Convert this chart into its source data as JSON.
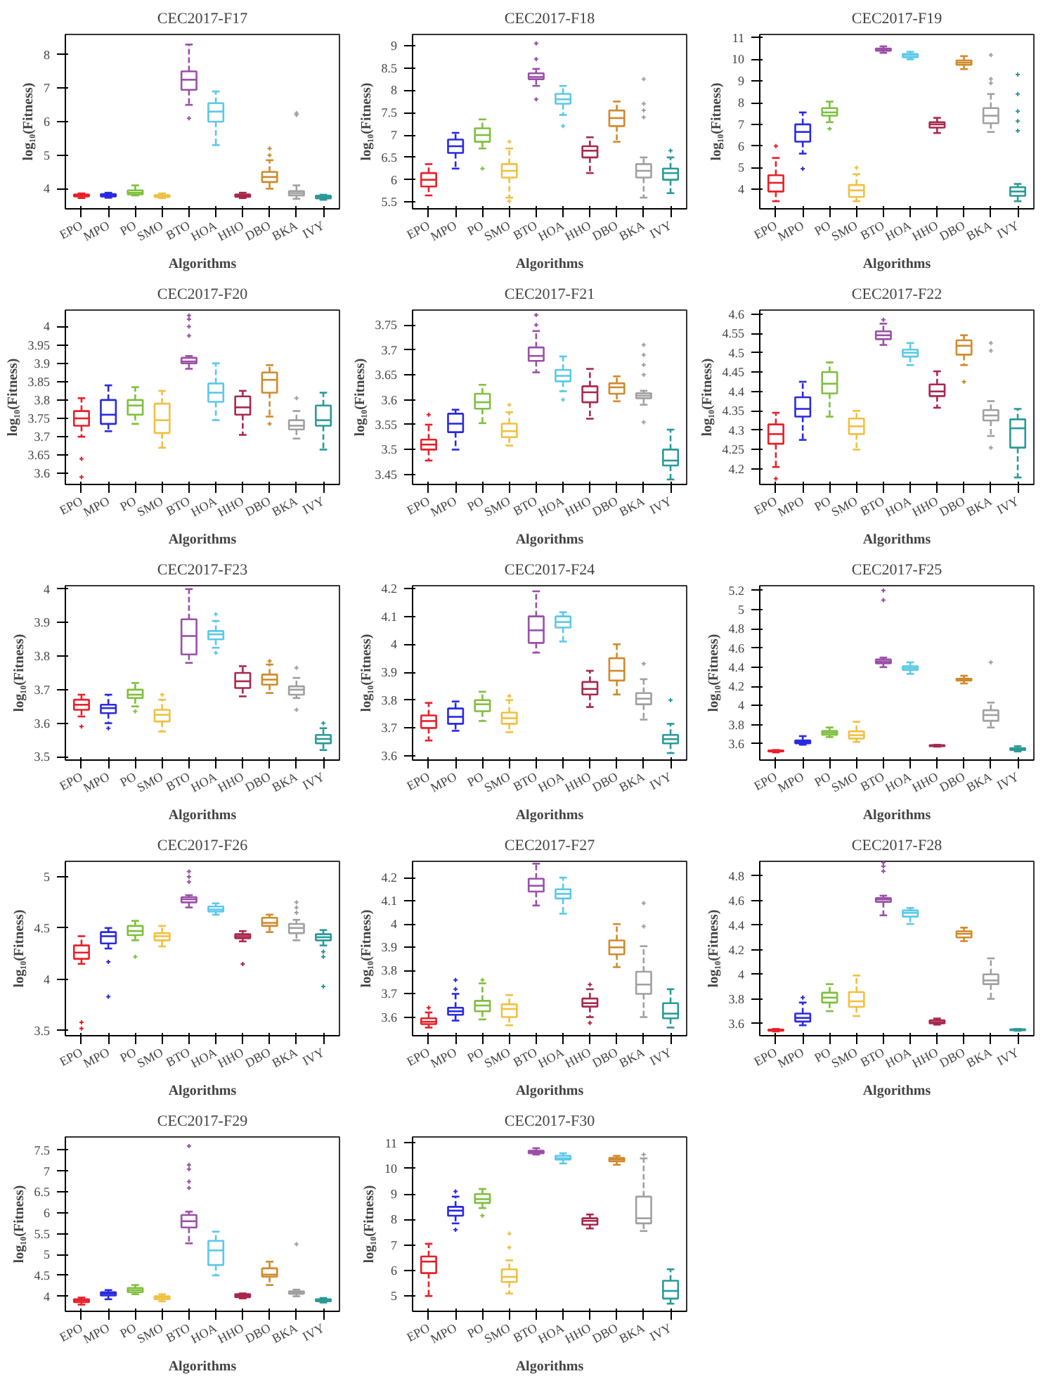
{
  "chart_data": [
    {
      "type": "box",
      "title": "CEC2017-F17",
      "xlabel": "Algorithms",
      "ylabel": "log₁₀(Fitness)",
      "categories": [
        "EPO",
        "MPO",
        "PO",
        "SMO",
        "BTO",
        "HOA",
        "HHO",
        "DBO",
        "BKA",
        "IVY"
      ],
      "colors": [
        "#e8202a",
        "#2a2ae0",
        "#7fbf3f",
        "#f0c040",
        "#9b4fa8",
        "#5bc8e8",
        "#a8284c",
        "#d08a2c",
        "#a0a0a0",
        "#2a9a98"
      ],
      "ylim": [
        3.4,
        8.6
      ],
      "yticks": [
        4,
        5,
        6,
        7,
        8
      ],
      "boxes": [
        {
          "low": 3.72,
          "q1": 3.77,
          "median": 3.8,
          "q3": 3.83,
          "high": 3.86
        },
        {
          "low": 3.73,
          "q1": 3.77,
          "median": 3.8,
          "q3": 3.84,
          "high": 3.88
        },
        {
          "low": 3.8,
          "q1": 3.83,
          "median": 3.88,
          "q3": 3.95,
          "high": 4.1
        },
        {
          "low": 3.72,
          "q1": 3.75,
          "median": 3.78,
          "q3": 3.81,
          "high": 3.86
        },
        {
          "low": 6.5,
          "q1": 6.95,
          "median": 7.25,
          "q3": 7.5,
          "high": 8.3,
          "outliers": [
            6.1
          ]
        },
        {
          "low": 5.3,
          "q1": 6.0,
          "median": 6.3,
          "q3": 6.55,
          "high": 6.9
        },
        {
          "low": 3.72,
          "q1": 3.76,
          "median": 3.8,
          "q3": 3.83,
          "high": 3.88
        },
        {
          "low": 4.0,
          "q1": 4.2,
          "median": 4.35,
          "q3": 4.5,
          "high": 4.85,
          "outliers": [
            5.0,
            5.2
          ]
        },
        {
          "low": 3.7,
          "q1": 3.8,
          "median": 3.87,
          "q3": 3.93,
          "high": 4.1,
          "outliers": [
            6.2,
            6.25
          ]
        },
        {
          "low": 3.67,
          "q1": 3.71,
          "median": 3.75,
          "q3": 3.79,
          "high": 3.82
        }
      ]
    },
    {
      "type": "box",
      "title": "CEC2017-F18",
      "xlabel": "Algorithms",
      "ylabel": "log₁₀(Fitness)",
      "categories": [
        "EPO",
        "MPO",
        "PO",
        "SMO",
        "BTO",
        "HOA",
        "HHO",
        "DBO",
        "BKA",
        "IVY"
      ],
      "colors": [
        "#e8202a",
        "#2a2ae0",
        "#7fbf3f",
        "#f0c040",
        "#9b4fa8",
        "#5bc8e8",
        "#a8284c",
        "#d08a2c",
        "#a0a0a0",
        "#2a9a98"
      ],
      "ylim": [
        5.35,
        9.25
      ],
      "yticks": [
        5.5,
        6,
        6.5,
        7,
        7.5,
        8,
        8.5,
        9
      ],
      "boxes": [
        {
          "low": 5.65,
          "q1": 5.85,
          "median": 6.0,
          "q3": 6.15,
          "high": 6.35
        },
        {
          "low": 6.25,
          "q1": 6.6,
          "median": 6.75,
          "q3": 6.9,
          "high": 7.05
        },
        {
          "low": 6.7,
          "q1": 6.85,
          "median": 7.0,
          "q3": 7.15,
          "high": 7.35,
          "outliers": [
            6.25
          ]
        },
        {
          "low": 5.6,
          "q1": 6.05,
          "median": 6.2,
          "q3": 6.35,
          "high": 6.7,
          "outliers": [
            5.52,
            6.85
          ]
        },
        {
          "low": 8.1,
          "q1": 8.25,
          "median": 8.3,
          "q3": 8.38,
          "high": 8.48,
          "outliers": [
            7.8,
            8.7,
            9.05
          ]
        },
        {
          "low": 7.45,
          "q1": 7.7,
          "median": 7.8,
          "q3": 7.92,
          "high": 8.1,
          "outliers": [
            7.2
          ]
        },
        {
          "low": 6.15,
          "q1": 6.5,
          "median": 6.65,
          "q3": 6.75,
          "high": 6.95
        },
        {
          "low": 6.85,
          "q1": 7.2,
          "median": 7.38,
          "q3": 7.55,
          "high": 7.75
        },
        {
          "low": 5.6,
          "q1": 6.05,
          "median": 6.2,
          "q3": 6.35,
          "high": 6.5,
          "outliers": [
            7.4,
            7.55,
            7.7,
            8.25
          ]
        },
        {
          "low": 5.7,
          "q1": 6.0,
          "median": 6.15,
          "q3": 6.25,
          "high": 6.5,
          "outliers": [
            6.65
          ]
        }
      ]
    },
    {
      "type": "box",
      "title": "CEC2017-F19",
      "xlabel": "Algorithms",
      "ylabel": "log₁₀(Fitness)",
      "categories": [
        "EPO",
        "MPO",
        "PO",
        "SMO",
        "BTO",
        "HOA",
        "HHO",
        "DBO",
        "BKA",
        "IVY"
      ],
      "colors": [
        "#e8202a",
        "#2a2ae0",
        "#7fbf3f",
        "#f0c040",
        "#9b4fa8",
        "#5bc8e8",
        "#a8284c",
        "#d08a2c",
        "#a0a0a0",
        "#2a9a98"
      ],
      "ylim": [
        3.1,
        11.15
      ],
      "yticks": [
        4,
        5,
        6,
        7,
        8,
        9,
        10,
        11
      ],
      "boxes": [
        {
          "low": 3.45,
          "q1": 3.9,
          "median": 4.3,
          "q3": 4.65,
          "high": 5.45,
          "outliers": [
            6.0
          ]
        },
        {
          "low": 5.65,
          "q1": 6.2,
          "median": 6.65,
          "q3": 7.0,
          "high": 7.55,
          "outliers": [
            4.95
          ]
        },
        {
          "low": 7.1,
          "q1": 7.4,
          "median": 7.55,
          "q3": 7.75,
          "high": 8.05,
          "outliers": [
            6.8
          ]
        },
        {
          "low": 3.45,
          "q1": 3.65,
          "median": 3.95,
          "q3": 4.2,
          "high": 4.7,
          "outliers": [
            5.0
          ]
        },
        {
          "low": 10.3,
          "q1": 10.4,
          "median": 10.45,
          "q3": 10.5,
          "high": 10.6
        },
        {
          "low": 10.0,
          "q1": 10.1,
          "median": 10.2,
          "q3": 10.25,
          "high": 10.35
        },
        {
          "low": 6.6,
          "q1": 6.85,
          "median": 7.0,
          "q3": 7.1,
          "high": 7.3
        },
        {
          "low": 9.55,
          "q1": 9.75,
          "median": 9.85,
          "q3": 9.95,
          "high": 10.15
        },
        {
          "low": 6.65,
          "q1": 7.05,
          "median": 7.4,
          "q3": 7.75,
          "high": 8.4,
          "outliers": [
            8.9,
            9.1,
            10.2
          ]
        },
        {
          "low": 3.45,
          "q1": 3.7,
          "median": 3.9,
          "q3": 4.1,
          "high": 4.25,
          "outliers": [
            6.7,
            7.15,
            7.6,
            8.4,
            9.3
          ]
        }
      ]
    },
    {
      "type": "box",
      "title": "CEC2017-F20",
      "xlabel": "Algorithms",
      "ylabel": "log₁₀(Fitness)",
      "categories": [
        "EPO",
        "MPO",
        "PO",
        "SMO",
        "BTO",
        "HOA",
        "HHO",
        "DBO",
        "BKA",
        "IVY"
      ],
      "colors": [
        "#e8202a",
        "#2a2ae0",
        "#7fbf3f",
        "#f0c040",
        "#9b4fa8",
        "#5bc8e8",
        "#a8284c",
        "#d08a2c",
        "#a0a0a0",
        "#2a9a98"
      ],
      "ylim": [
        3.57,
        4.045
      ],
      "yticks": [
        3.6,
        3.65,
        3.7,
        3.75,
        3.8,
        3.85,
        3.9,
        3.95,
        4
      ],
      "boxes": [
        {
          "low": 3.7,
          "q1": 3.73,
          "median": 3.75,
          "q3": 3.77,
          "high": 3.805,
          "outliers": [
            3.59,
            3.64
          ]
        },
        {
          "low": 3.715,
          "q1": 3.735,
          "median": 3.76,
          "q3": 3.8,
          "high": 3.84
        },
        {
          "low": 3.735,
          "q1": 3.76,
          "median": 3.785,
          "q3": 3.8,
          "high": 3.835
        },
        {
          "low": 3.67,
          "q1": 3.71,
          "median": 3.745,
          "q3": 3.79,
          "high": 3.825
        },
        {
          "low": 3.885,
          "q1": 3.9,
          "median": 3.905,
          "q3": 3.915,
          "high": 3.92,
          "outliers": [
            3.975,
            4.0,
            4.02,
            4.03
          ]
        },
        {
          "low": 3.745,
          "q1": 3.795,
          "median": 3.82,
          "q3": 3.845,
          "high": 3.9
        },
        {
          "low": 3.705,
          "q1": 3.76,
          "median": 3.78,
          "q3": 3.81,
          "high": 3.825
        },
        {
          "low": 3.755,
          "q1": 3.82,
          "median": 3.855,
          "q3": 3.875,
          "high": 3.895,
          "outliers": [
            3.735
          ]
        },
        {
          "low": 3.695,
          "q1": 3.72,
          "median": 3.73,
          "q3": 3.745,
          "high": 3.77,
          "outliers": [
            3.805
          ]
        },
        {
          "low": 3.665,
          "q1": 3.73,
          "median": 3.745,
          "q3": 3.785,
          "high": 3.82
        }
      ]
    },
    {
      "type": "box",
      "title": "CEC2017-F21",
      "xlabel": "Algorithms",
      "ylabel": "log₁₀(Fitness)",
      "categories": [
        "EPO",
        "MPO",
        "PO",
        "SMO",
        "BTO",
        "HOA",
        "HHO",
        "DBO",
        "BKA",
        "IVY"
      ],
      "colors": [
        "#e8202a",
        "#2a2ae0",
        "#7fbf3f",
        "#f0c040",
        "#9b4fa8",
        "#5bc8e8",
        "#a8284c",
        "#d08a2c",
        "#a0a0a0",
        "#2a9a98"
      ],
      "ylim": [
        3.43,
        3.78
      ],
      "yticks": [
        3.45,
        3.5,
        3.55,
        3.6,
        3.65,
        3.7,
        3.75
      ],
      "boxes": [
        {
          "low": 3.478,
          "q1": 3.5,
          "median": 3.51,
          "q3": 3.52,
          "high": 3.55,
          "outliers": [
            3.57
          ]
        },
        {
          "low": 3.5,
          "q1": 3.535,
          "median": 3.552,
          "q3": 3.572,
          "high": 3.58
        },
        {
          "low": 3.553,
          "q1": 3.582,
          "median": 3.595,
          "q3": 3.612,
          "high": 3.63
        },
        {
          "low": 3.508,
          "q1": 3.525,
          "median": 3.537,
          "q3": 3.552,
          "high": 3.575,
          "outliers": [
            3.59
          ]
        },
        {
          "low": 3.655,
          "q1": 3.678,
          "median": 3.688,
          "q3": 3.705,
          "high": 3.738,
          "outliers": [
            3.75,
            3.77
          ]
        },
        {
          "low": 3.617,
          "q1": 3.637,
          "median": 3.648,
          "q3": 3.66,
          "high": 3.687,
          "outliers": [
            3.6
          ]
        },
        {
          "low": 3.562,
          "q1": 3.595,
          "median": 3.615,
          "q3": 3.627,
          "high": 3.662
        },
        {
          "low": 3.597,
          "q1": 3.612,
          "median": 3.625,
          "q3": 3.633,
          "high": 3.647
        },
        {
          "low": 3.59,
          "q1": 3.603,
          "median": 3.608,
          "q3": 3.613,
          "high": 3.618,
          "outliers": [
            3.555,
            3.65,
            3.67,
            3.69,
            3.71
          ]
        },
        {
          "low": 3.44,
          "q1": 3.468,
          "median": 3.478,
          "q3": 3.5,
          "high": 3.54
        }
      ]
    },
    {
      "type": "box",
      "title": "CEC2017-F22",
      "xlabel": "Algorithms",
      "ylabel": "log₁₀(Fitness)",
      "categories": [
        "EPO",
        "MPO",
        "PO",
        "SMO",
        "BTO",
        "HOA",
        "HHO",
        "DBO",
        "BKA",
        "IVY"
      ],
      "colors": [
        "#e8202a",
        "#2a2ae0",
        "#7fbf3f",
        "#f0c040",
        "#9b4fa8",
        "#5bc8e8",
        "#a8284c",
        "#d08a2c",
        "#a0a0a0",
        "#2a9a98"
      ],
      "ylim": [
        4.16,
        4.61
      ],
      "yticks": [
        4.2,
        4.25,
        4.3,
        4.35,
        4.4,
        4.45,
        4.5,
        4.55,
        4.6
      ],
      "boxes": [
        {
          "low": 4.205,
          "q1": 4.265,
          "median": 4.29,
          "q3": 4.315,
          "high": 4.345,
          "outliers": [
            4.175
          ]
        },
        {
          "low": 4.275,
          "q1": 4.335,
          "median": 4.355,
          "q3": 4.385,
          "high": 4.425
        },
        {
          "low": 4.335,
          "q1": 4.395,
          "median": 4.42,
          "q3": 4.45,
          "high": 4.475
        },
        {
          "low": 4.25,
          "q1": 4.29,
          "median": 4.31,
          "q3": 4.33,
          "high": 4.35
        },
        {
          "low": 4.52,
          "q1": 4.535,
          "median": 4.545,
          "q3": 4.555,
          "high": 4.575,
          "outliers": [
            4.585
          ]
        },
        {
          "low": 4.468,
          "q1": 4.49,
          "median": 4.5,
          "q3": 4.508,
          "high": 4.525
        },
        {
          "low": 4.358,
          "q1": 4.388,
          "median": 4.4,
          "q3": 4.418,
          "high": 4.452
        },
        {
          "low": 4.468,
          "q1": 4.495,
          "median": 4.518,
          "q3": 4.532,
          "high": 4.545,
          "outliers": [
            4.425
          ]
        },
        {
          "low": 4.285,
          "q1": 4.325,
          "median": 4.338,
          "q3": 4.352,
          "high": 4.375,
          "outliers": [
            4.255,
            4.505,
            4.525
          ]
        },
        {
          "low": 4.178,
          "q1": 4.255,
          "median": 4.305,
          "q3": 4.328,
          "high": 4.355
        }
      ]
    },
    {
      "type": "box",
      "title": "CEC2017-F23",
      "xlabel": "Algorithms",
      "ylabel": "log₁₀(Fitness)",
      "categories": [
        "EPO",
        "MPO",
        "PO",
        "SMO",
        "BTO",
        "HOA",
        "HHO",
        "DBO",
        "BKA",
        "IVY"
      ],
      "colors": [
        "#e8202a",
        "#2a2ae0",
        "#7fbf3f",
        "#f0c040",
        "#9b4fa8",
        "#5bc8e8",
        "#a8284c",
        "#d08a2c",
        "#a0a0a0",
        "#2a9a98"
      ],
      "ylim": [
        3.49,
        4.01
      ],
      "yticks": [
        3.5,
        3.6,
        3.7,
        3.8,
        3.9,
        4
      ],
      "boxes": [
        {
          "low": 3.62,
          "q1": 3.64,
          "median": 3.655,
          "q3": 3.67,
          "high": 3.685,
          "outliers": [
            3.59
          ]
        },
        {
          "low": 3.6,
          "q1": 3.63,
          "median": 3.645,
          "q3": 3.655,
          "high": 3.685,
          "outliers": [
            3.585
          ]
        },
        {
          "low": 3.65,
          "q1": 3.675,
          "median": 3.685,
          "q3": 3.7,
          "high": 3.72,
          "outliers": [
            3.635
          ]
        },
        {
          "low": 3.575,
          "q1": 3.605,
          "median": 3.625,
          "q3": 3.64,
          "high": 3.67,
          "outliers": [
            3.685
          ]
        },
        {
          "low": 3.78,
          "q1": 3.805,
          "median": 3.86,
          "q3": 3.91,
          "high": 4.0
        },
        {
          "low": 3.825,
          "q1": 3.85,
          "median": 3.865,
          "q3": 3.875,
          "high": 3.905,
          "outliers": [
            3.81,
            3.925
          ]
        },
        {
          "low": 3.68,
          "q1": 3.705,
          "median": 3.725,
          "q3": 3.75,
          "high": 3.77
        },
        {
          "low": 3.69,
          "q1": 3.715,
          "median": 3.73,
          "q3": 3.745,
          "high": 3.775,
          "outliers": [
            3.785
          ]
        },
        {
          "low": 3.675,
          "q1": 3.685,
          "median": 3.7,
          "q3": 3.71,
          "high": 3.735,
          "outliers": [
            3.64,
            3.765
          ]
        },
        {
          "low": 3.52,
          "q1": 3.54,
          "median": 3.553,
          "q3": 3.565,
          "high": 3.585,
          "outliers": [
            3.6
          ]
        }
      ]
    },
    {
      "type": "box",
      "title": "CEC2017-F24",
      "xlabel": "Algorithms",
      "ylabel": "log₁₀(Fitness)",
      "categories": [
        "EPO",
        "MPO",
        "PO",
        "SMO",
        "BTO",
        "HOA",
        "HHO",
        "DBO",
        "BKA",
        "IVY"
      ],
      "colors": [
        "#e8202a",
        "#2a2ae0",
        "#7fbf3f",
        "#f0c040",
        "#9b4fa8",
        "#5bc8e8",
        "#a8284c",
        "#d08a2c",
        "#a0a0a0",
        "#2a9a98"
      ],
      "ylim": [
        3.585,
        4.21
      ],
      "yticks": [
        3.6,
        3.7,
        3.8,
        3.9,
        4,
        4.1,
        4.2
      ],
      "boxes": [
        {
          "low": 3.655,
          "q1": 3.7,
          "median": 3.725,
          "q3": 3.745,
          "high": 3.79
        },
        {
          "low": 3.69,
          "q1": 3.715,
          "median": 3.74,
          "q3": 3.77,
          "high": 3.795
        },
        {
          "low": 3.725,
          "q1": 3.76,
          "median": 3.785,
          "q3": 3.8,
          "high": 3.83
        },
        {
          "low": 3.685,
          "q1": 3.715,
          "median": 3.735,
          "q3": 3.755,
          "high": 3.8,
          "outliers": [
            3.815
          ]
        },
        {
          "low": 3.97,
          "q1": 4.005,
          "median": 4.05,
          "q3": 4.1,
          "high": 4.19
        },
        {
          "low": 4.01,
          "q1": 4.06,
          "median": 4.08,
          "q3": 4.1,
          "high": 4.115
        },
        {
          "low": 3.775,
          "q1": 3.82,
          "median": 3.84,
          "q3": 3.865,
          "high": 3.905
        },
        {
          "low": 3.82,
          "q1": 3.87,
          "median": 3.905,
          "q3": 3.95,
          "high": 4.0
        },
        {
          "low": 3.73,
          "q1": 3.785,
          "median": 3.805,
          "q3": 3.825,
          "high": 3.875,
          "outliers": [
            3.93
          ]
        },
        {
          "low": 3.61,
          "q1": 3.645,
          "median": 3.66,
          "q3": 3.675,
          "high": 3.715,
          "outliers": [
            3.8
          ]
        }
      ]
    },
    {
      "type": "box",
      "title": "CEC2017-F25",
      "xlabel": "Algorithms",
      "ylabel": "log₁₀(Fitness)",
      "categories": [
        "EPO",
        "MPO",
        "PO",
        "SMO",
        "BTO",
        "HOA",
        "HHO",
        "DBO",
        "BKA",
        "IVY"
      ],
      "colors": [
        "#e8202a",
        "#2a2ae0",
        "#7fbf3f",
        "#f0c040",
        "#9b4fa8",
        "#5bc8e8",
        "#a8284c",
        "#d08a2c",
        "#a0a0a0",
        "#2a9a98"
      ],
      "ylim": [
        3.43,
        5.25
      ],
      "yticks": [
        3.6,
        3.8,
        4,
        4.2,
        4.4,
        4.6,
        4.8,
        5,
        5.2
      ],
      "boxes": [
        {
          "low": 3.51,
          "q1": 3.52,
          "median": 3.525,
          "q3": 3.53,
          "high": 3.535
        },
        {
          "low": 3.59,
          "q1": 3.605,
          "median": 3.62,
          "q3": 3.635,
          "high": 3.68
        },
        {
          "low": 3.67,
          "q1": 3.695,
          "median": 3.715,
          "q3": 3.735,
          "high": 3.77
        },
        {
          "low": 3.62,
          "q1": 3.655,
          "median": 3.69,
          "q3": 3.73,
          "high": 3.83
        },
        {
          "low": 4.4,
          "q1": 4.44,
          "median": 4.46,
          "q3": 4.48,
          "high": 4.5,
          "outliers": [
            5.1,
            5.2
          ]
        },
        {
          "low": 4.33,
          "q1": 4.37,
          "median": 4.39,
          "q3": 4.41,
          "high": 4.45
        },
        {
          "low": 3.57,
          "q1": 3.575,
          "median": 3.58,
          "q3": 3.585,
          "high": 3.59
        },
        {
          "low": 4.23,
          "q1": 4.26,
          "median": 4.27,
          "q3": 4.28,
          "high": 4.31
        },
        {
          "low": 3.77,
          "q1": 3.84,
          "median": 3.9,
          "q3": 3.95,
          "high": 4.03,
          "outliers": [
            4.45
          ]
        },
        {
          "low": 3.52,
          "q1": 3.535,
          "median": 3.545,
          "q3": 3.555,
          "high": 3.575
        }
      ]
    },
    {
      "type": "box",
      "title": "CEC2017-F26",
      "xlabel": "Algorithms",
      "ylabel": "log₁₀(Fitness)",
      "categories": [
        "EPO",
        "MPO",
        "PO",
        "SMO",
        "BTO",
        "HOA",
        "HHO",
        "DBO",
        "BKA",
        "IVY"
      ],
      "colors": [
        "#e8202a",
        "#2a2ae0",
        "#7fbf3f",
        "#f0c040",
        "#9b4fa8",
        "#5bc8e8",
        "#a8284c",
        "#d08a2c",
        "#a0a0a0",
        "#2a9a98"
      ],
      "ylim": [
        3.45,
        5.15
      ],
      "yticks": [
        3.5,
        4,
        4.5,
        5
      ],
      "boxes": [
        {
          "low": 4.15,
          "q1": 4.2,
          "median": 4.26,
          "q3": 4.33,
          "high": 4.42,
          "outliers": [
            3.52,
            3.58
          ]
        },
        {
          "low": 4.3,
          "q1": 4.35,
          "median": 4.42,
          "q3": 4.46,
          "high": 4.5,
          "outliers": [
            3.83,
            4.17
          ]
        },
        {
          "low": 4.38,
          "q1": 4.43,
          "median": 4.47,
          "q3": 4.52,
          "high": 4.57,
          "outliers": [
            4.22
          ]
        },
        {
          "low": 4.32,
          "q1": 4.38,
          "median": 4.42,
          "q3": 4.45,
          "high": 4.52
        },
        {
          "low": 4.7,
          "q1": 4.75,
          "median": 4.78,
          "q3": 4.8,
          "high": 4.82,
          "outliers": [
            4.95,
            5.0,
            5.05
          ]
        },
        {
          "low": 4.63,
          "q1": 4.66,
          "median": 4.68,
          "q3": 4.71,
          "high": 4.74
        },
        {
          "low": 4.37,
          "q1": 4.4,
          "median": 4.42,
          "q3": 4.44,
          "high": 4.47,
          "outliers": [
            4.15
          ]
        },
        {
          "low": 4.46,
          "q1": 4.52,
          "median": 4.55,
          "q3": 4.6,
          "high": 4.63
        },
        {
          "low": 4.38,
          "q1": 4.45,
          "median": 4.5,
          "q3": 4.54,
          "high": 4.58,
          "outliers": [
            4.65,
            4.7,
            4.75
          ]
        },
        {
          "low": 4.33,
          "q1": 4.38,
          "median": 4.41,
          "q3": 4.44,
          "high": 4.48,
          "outliers": [
            3.93,
            4.22,
            4.27
          ]
        }
      ]
    },
    {
      "type": "box",
      "title": "CEC2017-F27",
      "xlabel": "Algorithms",
      "ylabel": "log₁₀(Fitness)",
      "categories": [
        "EPO",
        "MPO",
        "PO",
        "SMO",
        "BTO",
        "HOA",
        "HHO",
        "DBO",
        "BKA",
        "IVY"
      ],
      "colors": [
        "#e8202a",
        "#2a2ae0",
        "#7fbf3f",
        "#f0c040",
        "#9b4fa8",
        "#5bc8e8",
        "#a8284c",
        "#d08a2c",
        "#a0a0a0",
        "#2a9a98"
      ],
      "ylim": [
        3.52,
        4.27
      ],
      "yticks": [
        3.6,
        3.7,
        3.8,
        3.9,
        4,
        4.1,
        4.2
      ],
      "boxes": [
        {
          "low": 3.555,
          "q1": 3.57,
          "median": 3.58,
          "q3": 3.595,
          "high": 3.62,
          "outliers": [
            3.64
          ]
        },
        {
          "low": 3.585,
          "q1": 3.61,
          "median": 3.625,
          "q3": 3.64,
          "high": 3.7,
          "outliers": [
            3.72,
            3.76
          ]
        },
        {
          "low": 3.59,
          "q1": 3.625,
          "median": 3.65,
          "q3": 3.67,
          "high": 3.745,
          "outliers": [
            3.76
          ]
        },
        {
          "low": 3.565,
          "q1": 3.6,
          "median": 3.635,
          "q3": 3.655,
          "high": 3.695
        },
        {
          "low": 4.08,
          "q1": 4.14,
          "median": 4.165,
          "q3": 4.195,
          "high": 4.26
        },
        {
          "low": 4.045,
          "q1": 4.11,
          "median": 4.13,
          "q3": 4.15,
          "high": 4.2
        },
        {
          "low": 3.6,
          "q1": 3.645,
          "median": 3.66,
          "q3": 3.68,
          "high": 3.72,
          "outliers": [
            3.575,
            3.74
          ]
        },
        {
          "low": 3.815,
          "q1": 3.87,
          "median": 3.9,
          "q3": 3.93,
          "high": 4.0
        },
        {
          "low": 3.6,
          "q1": 3.7,
          "median": 3.74,
          "q3": 3.795,
          "high": 3.905,
          "outliers": [
            3.99,
            4.09
          ]
        },
        {
          "low": 3.555,
          "q1": 3.595,
          "median": 3.615,
          "q3": 3.66,
          "high": 3.72
        }
      ]
    },
    {
      "type": "box",
      "title": "CEC2017-F28",
      "xlabel": "Algorithms",
      "ylabel": "log₁₀(Fitness)",
      "categories": [
        "EPO",
        "MPO",
        "PO",
        "SMO",
        "BTO",
        "HOA",
        "HHO",
        "DBO",
        "BKA",
        "IVY"
      ],
      "colors": [
        "#e8202a",
        "#2a2ae0",
        "#7fbf3f",
        "#f0c040",
        "#9b4fa8",
        "#5bc8e8",
        "#a8284c",
        "#d08a2c",
        "#a0a0a0",
        "#2a9a98"
      ],
      "ylim": [
        3.5,
        4.92
      ],
      "yticks": [
        3.6,
        3.8,
        4,
        4.2,
        4.4,
        4.6,
        4.8
      ],
      "boxes": [
        {
          "low": 3.535,
          "q1": 3.54,
          "median": 3.545,
          "q3": 3.55,
          "high": 3.555
        },
        {
          "low": 3.585,
          "q1": 3.615,
          "median": 3.645,
          "q3": 3.68,
          "high": 3.77,
          "outliers": [
            3.81
          ]
        },
        {
          "low": 3.7,
          "q1": 3.77,
          "median": 3.81,
          "q3": 3.85,
          "high": 3.92
        },
        {
          "low": 3.66,
          "q1": 3.735,
          "median": 3.78,
          "q3": 3.855,
          "high": 3.99
        },
        {
          "low": 4.48,
          "q1": 4.59,
          "median": 4.61,
          "q3": 4.62,
          "high": 4.64,
          "outliers": [
            4.84,
            4.88,
            4.91
          ]
        },
        {
          "low": 4.41,
          "q1": 4.47,
          "median": 4.5,
          "q3": 4.52,
          "high": 4.54
        },
        {
          "low": 3.59,
          "q1": 3.6,
          "median": 3.61,
          "q3": 3.625,
          "high": 3.64
        },
        {
          "low": 4.27,
          "q1": 4.3,
          "median": 4.33,
          "q3": 4.35,
          "high": 4.38
        },
        {
          "low": 3.8,
          "q1": 3.92,
          "median": 3.95,
          "q3": 4.0,
          "high": 4.13
        },
        {
          "low": 3.54,
          "q1": 3.545,
          "median": 3.548,
          "q3": 3.552,
          "high": 3.555
        }
      ]
    },
    {
      "type": "box",
      "title": "CEC2017-F29",
      "xlabel": "Algorithms",
      "ylabel": "log₁₀(Fitness)",
      "categories": [
        "EPO",
        "MPO",
        "PO",
        "SMO",
        "BTO",
        "HOA",
        "HHO",
        "DBO",
        "BKA",
        "IVY"
      ],
      "colors": [
        "#e8202a",
        "#2a2ae0",
        "#7fbf3f",
        "#f0c040",
        "#9b4fa8",
        "#5bc8e8",
        "#a8284c",
        "#d08a2c",
        "#a0a0a0",
        "#2a9a98"
      ],
      "ylim": [
        3.64,
        7.82
      ],
      "yticks": [
        4,
        4.5,
        5,
        5.5,
        6,
        6.5,
        7,
        7.5
      ],
      "boxes": [
        {
          "low": 3.8,
          "q1": 3.86,
          "median": 3.9,
          "q3": 3.93,
          "high": 3.97
        },
        {
          "low": 3.93,
          "q1": 4.02,
          "median": 4.06,
          "q3": 4.1,
          "high": 4.15
        },
        {
          "low": 4.05,
          "q1": 4.1,
          "median": 4.15,
          "q3": 4.2,
          "high": 4.27
        },
        {
          "low": 3.88,
          "q1": 3.93,
          "median": 3.97,
          "q3": 4.0,
          "high": 4.05
        },
        {
          "low": 5.27,
          "q1": 5.65,
          "median": 5.8,
          "q3": 5.95,
          "high": 6.03,
          "outliers": [
            6.6,
            6.75,
            7.05,
            7.15,
            7.6
          ]
        },
        {
          "low": 4.5,
          "q1": 4.75,
          "median": 5.1,
          "q3": 5.33,
          "high": 5.55
        },
        {
          "low": 3.95,
          "q1": 3.98,
          "median": 4.01,
          "q3": 4.05,
          "high": 4.07
        },
        {
          "low": 4.27,
          "q1": 4.47,
          "median": 4.52,
          "q3": 4.67,
          "high": 4.83
        },
        {
          "low": 4.0,
          "q1": 4.06,
          "median": 4.09,
          "q3": 4.12,
          "high": 4.16,
          "outliers": [
            5.25
          ]
        },
        {
          "low": 3.85,
          "q1": 3.88,
          "median": 3.9,
          "q3": 3.93,
          "high": 3.96
        }
      ]
    },
    {
      "type": "box",
      "title": "CEC2017-F30",
      "xlabel": "Algorithms",
      "ylabel": "log₁₀(Fitness)",
      "categories": [
        "EPO",
        "MPO",
        "PO",
        "SMO",
        "BTO",
        "HOA",
        "HHO",
        "DBO",
        "BKA",
        "IVY"
      ],
      "colors": [
        "#e8202a",
        "#2a2ae0",
        "#7fbf3f",
        "#f0c040",
        "#9b4fa8",
        "#5bc8e8",
        "#a8284c",
        "#d08a2c",
        "#a0a0a0",
        "#2a9a98"
      ],
      "ylim": [
        4.4,
        11.24
      ],
      "yticks": [
        5,
        6,
        7,
        8,
        9,
        10,
        11
      ],
      "boxes": [
        {
          "low": 5.0,
          "q1": 5.9,
          "median": 6.35,
          "q3": 6.55,
          "high": 7.05
        },
        {
          "low": 7.85,
          "q1": 8.15,
          "median": 8.35,
          "q3": 8.5,
          "high": 8.9,
          "outliers": [
            7.6,
            9.1
          ]
        },
        {
          "low": 8.45,
          "q1": 8.65,
          "median": 8.8,
          "q3": 9.0,
          "high": 9.2,
          "outliers": [
            8.15
          ]
        },
        {
          "low": 5.1,
          "q1": 5.55,
          "median": 5.75,
          "q3": 6.05,
          "high": 6.4,
          "outliers": [
            6.9,
            7.45
          ]
        },
        {
          "low": 10.55,
          "q1": 10.6,
          "median": 10.65,
          "q3": 10.7,
          "high": 10.8
        },
        {
          "low": 10.2,
          "q1": 10.35,
          "median": 10.4,
          "q3": 10.5,
          "high": 10.6
        },
        {
          "low": 7.65,
          "q1": 7.8,
          "median": 7.95,
          "q3": 8.05,
          "high": 8.2
        },
        {
          "low": 10.15,
          "q1": 10.28,
          "median": 10.35,
          "q3": 10.42,
          "high": 10.5
        },
        {
          "low": 7.55,
          "q1": 7.85,
          "median": 8.05,
          "q3": 8.9,
          "high": 10.4,
          "outliers": [
            10.55
          ]
        },
        {
          "low": 4.7,
          "q1": 4.9,
          "median": 5.2,
          "q3": 5.6,
          "high": 6.05
        }
      ]
    }
  ]
}
